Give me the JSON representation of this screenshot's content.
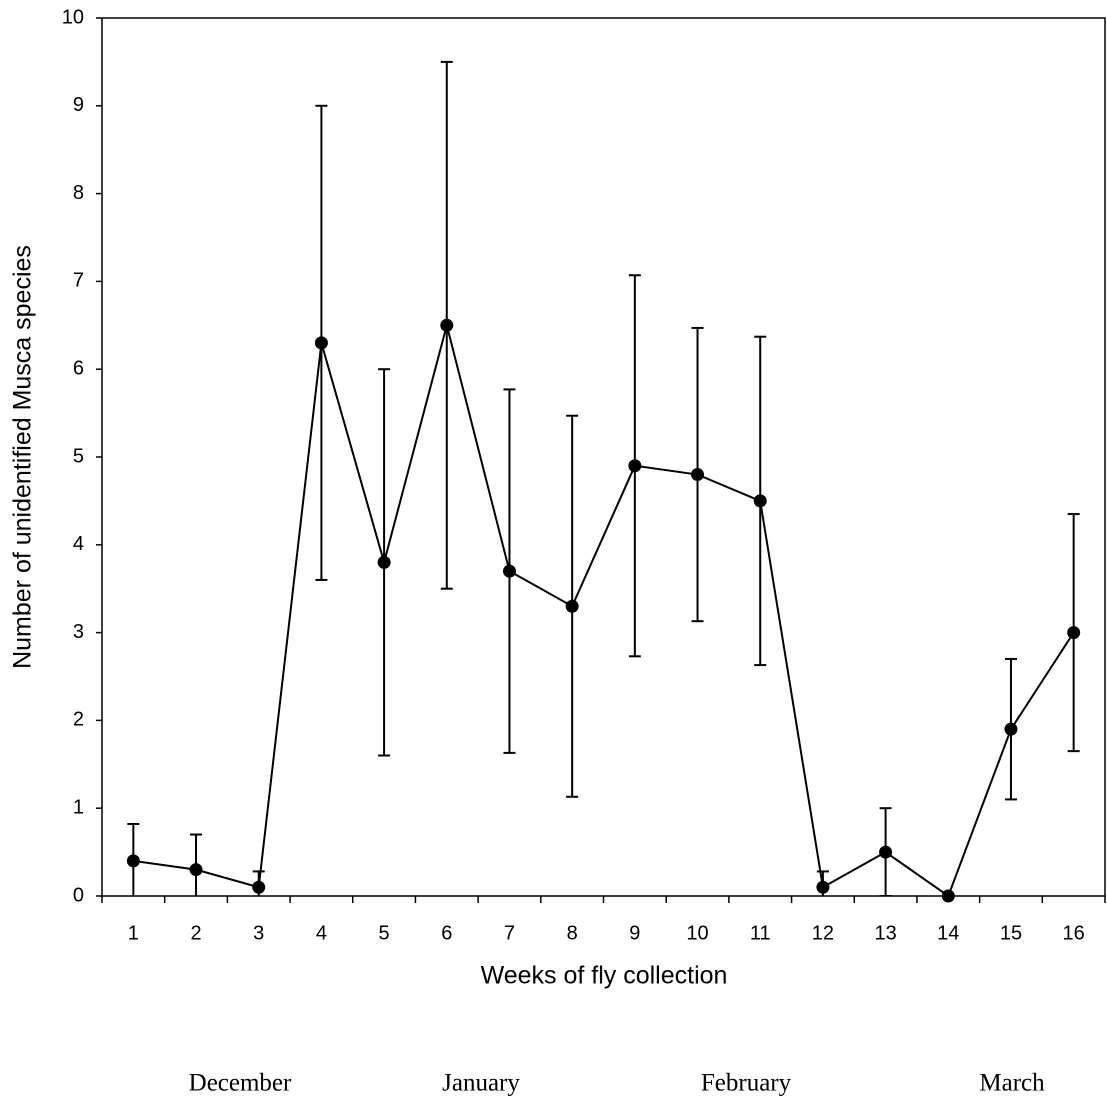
{
  "chart_data": {
    "type": "line",
    "x_label": "Weeks of fly collection",
    "y_label": "Number of unidentified Musca species",
    "categories": [
      "1",
      "2",
      "3",
      "4",
      "5",
      "6",
      "7",
      "8",
      "9",
      "10",
      "11",
      "12",
      "13",
      "14",
      "15",
      "16"
    ],
    "values": [
      0.4,
      0.3,
      0.1,
      6.3,
      3.8,
      6.5,
      3.7,
      3.3,
      4.9,
      4.8,
      4.5,
      0.1,
      0.5,
      0,
      1.9,
      3.0
    ],
    "errors": [
      0.42,
      0.4,
      0.18,
      2.7,
      2.2,
      3.0,
      2.07,
      2.17,
      2.17,
      1.67,
      1.87,
      0.18,
      0.5,
      0,
      0.8,
      1.35
    ],
    "color": "#000000",
    "ylim": [
      0,
      10
    ],
    "yticks": [
      0,
      1,
      2,
      3,
      4,
      5,
      6,
      7,
      8,
      9,
      10
    ],
    "annotations": [
      "December",
      "January",
      "February",
      "March"
    ]
  }
}
